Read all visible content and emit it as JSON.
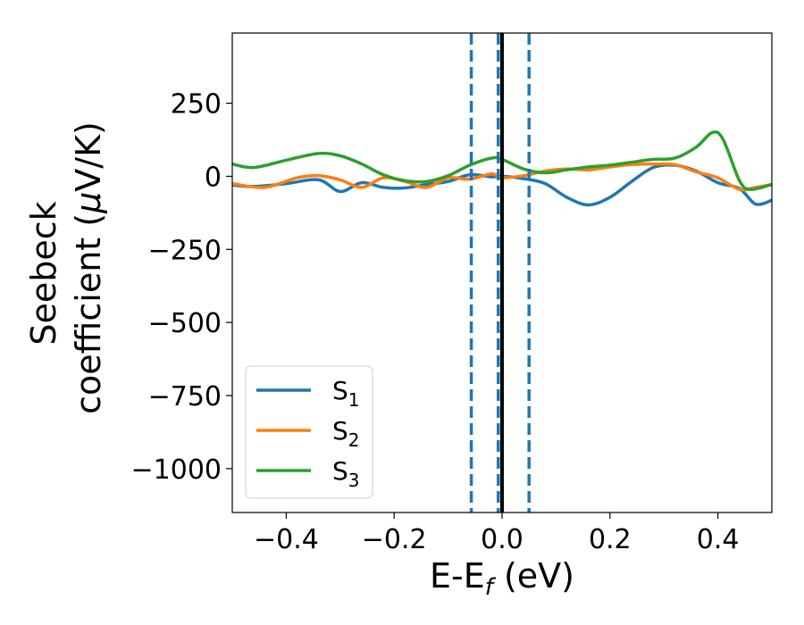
{
  "chart_data": {
    "type": "line",
    "xlabel": "E-E",
    "xlabel_sub": "f",
    "xlabel_unit": " (eV)",
    "ylabel_line1": "Seebeck",
    "ylabel_line2_text": "coefficient  (",
    "ylabel_line2_mu": "μ",
    "ylabel_line2_unit": "V/K)",
    "xlim": [
      -0.5,
      0.5
    ],
    "ylim": [
      -1150,
      490
    ],
    "xticks": [
      -0.4,
      -0.2,
      0.0,
      0.2,
      0.4
    ],
    "xtick_labels": [
      "−0.4",
      "−0.2",
      "0.0",
      "0.2",
      "0.4"
    ],
    "yticks": [
      250,
      0,
      -250,
      -500,
      -750,
      -1000
    ],
    "ytick_labels": [
      "250",
      "0",
      "−250",
      "−500",
      "−750",
      "−1000"
    ],
    "legend_position": "lower-left",
    "grid": false,
    "vertical_lines": [
      {
        "x": 0.0,
        "style": "solid",
        "color": "#000000"
      },
      {
        "x": -0.057,
        "style": "dashed",
        "color": "#1f77b4"
      },
      {
        "x": -0.007,
        "style": "dashed",
        "color": "#1f77b4"
      },
      {
        "x": 0.05,
        "style": "dashed",
        "color": "#1f77b4"
      }
    ],
    "series": [
      {
        "name": "S",
        "sub": "1",
        "color": "#1f77b4",
        "points": [
          [
            -0.5,
            -30
          ],
          [
            -0.46,
            -35
          ],
          [
            -0.4,
            -25
          ],
          [
            -0.34,
            -12
          ],
          [
            -0.3,
            -52
          ],
          [
            -0.26,
            -22
          ],
          [
            -0.22,
            -38
          ],
          [
            -0.18,
            -40
          ],
          [
            -0.14,
            -28
          ],
          [
            -0.1,
            -18
          ],
          [
            -0.06,
            5
          ],
          [
            -0.02,
            -2
          ],
          [
            0.0,
            0
          ],
          [
            0.04,
            -8
          ],
          [
            0.08,
            -25
          ],
          [
            0.12,
            -72
          ],
          [
            0.16,
            -98
          ],
          [
            0.2,
            -72
          ],
          [
            0.24,
            -18
          ],
          [
            0.28,
            30
          ],
          [
            0.32,
            38
          ],
          [
            0.36,
            18
          ],
          [
            0.4,
            -22
          ],
          [
            0.44,
            -42
          ],
          [
            0.47,
            -95
          ],
          [
            0.5,
            -82
          ]
        ]
      },
      {
        "name": "S",
        "sub": "2",
        "color": "#ff7f0e",
        "points": [
          [
            -0.5,
            -25
          ],
          [
            -0.44,
            -38
          ],
          [
            -0.38,
            -5
          ],
          [
            -0.34,
            2
          ],
          [
            -0.3,
            -12
          ],
          [
            -0.26,
            -38
          ],
          [
            -0.22,
            -5
          ],
          [
            -0.18,
            -18
          ],
          [
            -0.14,
            -38
          ],
          [
            -0.1,
            -5
          ],
          [
            -0.06,
            -10
          ],
          [
            -0.02,
            8
          ],
          [
            0.0,
            -5
          ],
          [
            0.04,
            2
          ],
          [
            0.08,
            18
          ],
          [
            0.12,
            25
          ],
          [
            0.16,
            22
          ],
          [
            0.2,
            32
          ],
          [
            0.24,
            40
          ],
          [
            0.28,
            42
          ],
          [
            0.32,
            40
          ],
          [
            0.36,
            15
          ],
          [
            0.4,
            -5
          ],
          [
            0.44,
            -45
          ],
          [
            0.47,
            -38
          ],
          [
            0.5,
            -28
          ]
        ]
      },
      {
        "name": "S",
        "sub": "3",
        "color": "#2ca02c",
        "points": [
          [
            -0.5,
            42
          ],
          [
            -0.46,
            30
          ],
          [
            -0.4,
            55
          ],
          [
            -0.34,
            78
          ],
          [
            -0.3,
            70
          ],
          [
            -0.26,
            42
          ],
          [
            -0.22,
            5
          ],
          [
            -0.18,
            -15
          ],
          [
            -0.14,
            -18
          ],
          [
            -0.1,
            2
          ],
          [
            -0.06,
            38
          ],
          [
            -0.02,
            62
          ],
          [
            0.0,
            58
          ],
          [
            0.04,
            25
          ],
          [
            0.08,
            12
          ],
          [
            0.12,
            22
          ],
          [
            0.16,
            32
          ],
          [
            0.2,
            38
          ],
          [
            0.24,
            48
          ],
          [
            0.28,
            58
          ],
          [
            0.32,
            62
          ],
          [
            0.36,
            100
          ],
          [
            0.39,
            150
          ],
          [
            0.41,
            125
          ],
          [
            0.44,
            -15
          ],
          [
            0.46,
            -45
          ],
          [
            0.5,
            -28
          ]
        ]
      }
    ]
  }
}
